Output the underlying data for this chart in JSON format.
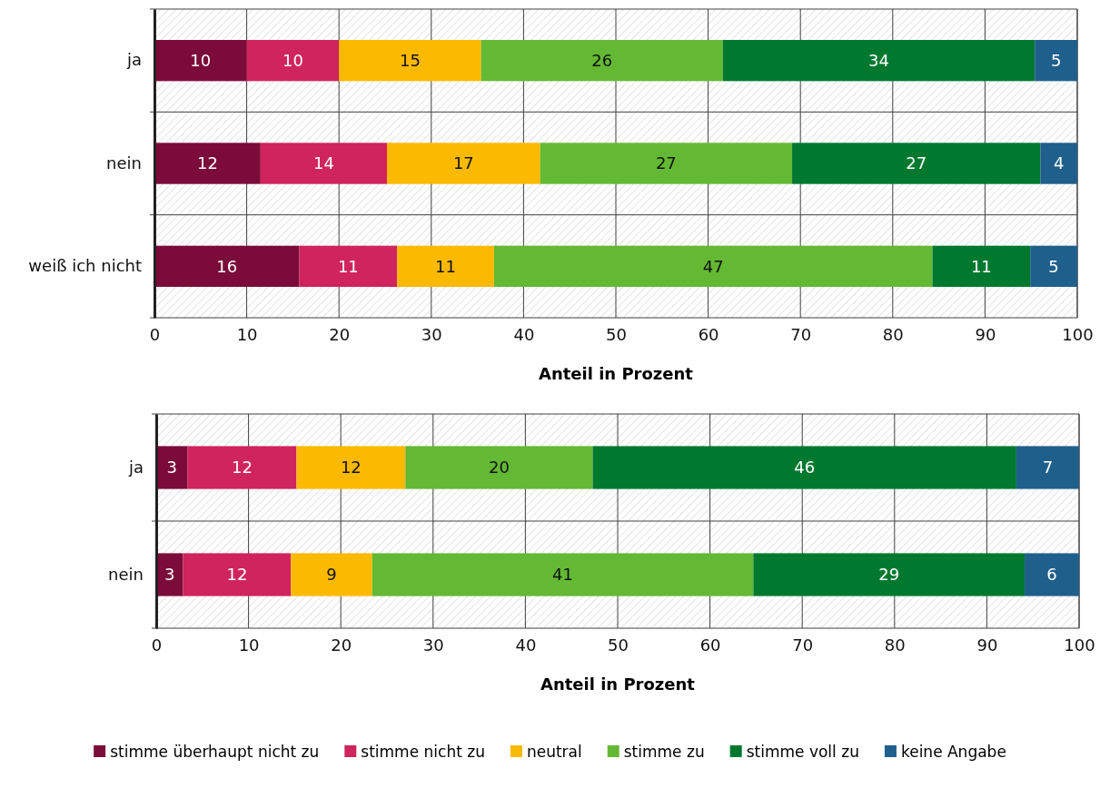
{
  "chart_data": [
    {
      "type": "bar",
      "orientation": "horizontal",
      "stacked": true,
      "categories": [
        "ja",
        "nein",
        "weiß ich nicht"
      ],
      "xlim": [
        0,
        100
      ],
      "xticks": [
        0,
        10,
        20,
        30,
        40,
        50,
        60,
        70,
        80,
        90,
        100
      ],
      "xlabel": "Anteil in Prozent",
      "grid": "x",
      "series": [
        {
          "color": "#7b0c3a",
          "values": [
            10,
            11.5,
            15.7
          ],
          "value_labels": [
            "10",
            "12",
            "16"
          ]
        },
        {
          "color": "#d0245e",
          "values": [
            10,
            13.7,
            10.6
          ],
          "value_labels": [
            "10",
            "14",
            "11"
          ]
        },
        {
          "color": "#fbb900",
          "values": [
            15.4,
            16.6,
            10.5
          ],
          "value_labels": [
            "15",
            "17",
            "11"
          ]
        },
        {
          "color": "#63b933",
          "values": [
            26.2,
            27.3,
            47.5
          ],
          "value_labels": [
            "26",
            "27",
            "47"
          ]
        },
        {
          "color": "#00792f",
          "values": [
            33.8,
            26.9,
            10.6
          ],
          "value_labels": [
            "34",
            "27",
            "11"
          ]
        },
        {
          "color": "#1f5f8b",
          "values": [
            4.6,
            4.0,
            5.1
          ],
          "value_labels": [
            "5",
            "4",
            "5"
          ]
        }
      ]
    },
    {
      "type": "bar",
      "orientation": "horizontal",
      "stacked": true,
      "categories": [
        "ja",
        "nein"
      ],
      "xlim": [
        0,
        100
      ],
      "xticks": [
        0,
        10,
        20,
        30,
        40,
        50,
        60,
        70,
        80,
        90,
        100
      ],
      "xlabel": "Anteil in Prozent",
      "grid": "x",
      "legend": "bottom",
      "series": [
        {
          "name": "stimme überhaupt nicht zu",
          "color": "#7b0c3a",
          "values": [
            3.4,
            2.9
          ],
          "value_labels": [
            "3",
            "3"
          ]
        },
        {
          "name": "stimme nicht zu",
          "color": "#d0245e",
          "values": [
            11.8,
            11.7
          ],
          "value_labels": [
            "12",
            "12"
          ]
        },
        {
          "name": "neutral",
          "color": "#fbb900",
          "values": [
            11.8,
            8.8
          ],
          "value_labels": [
            "12",
            "9"
          ]
        },
        {
          "name": "stimme zu",
          "color": "#63b933",
          "values": [
            20.3,
            41.3
          ],
          "value_labels": [
            "20",
            "41"
          ]
        },
        {
          "name": "stimme voll zu",
          "color": "#00792f",
          "values": [
            45.9,
            29.4
          ],
          "value_labels": [
            "46",
            "29"
          ]
        },
        {
          "name": "keine Angabe",
          "color": "#1f5f8b",
          "values": [
            6.8,
            5.9
          ],
          "value_labels": [
            "7",
            "6"
          ]
        }
      ]
    }
  ]
}
